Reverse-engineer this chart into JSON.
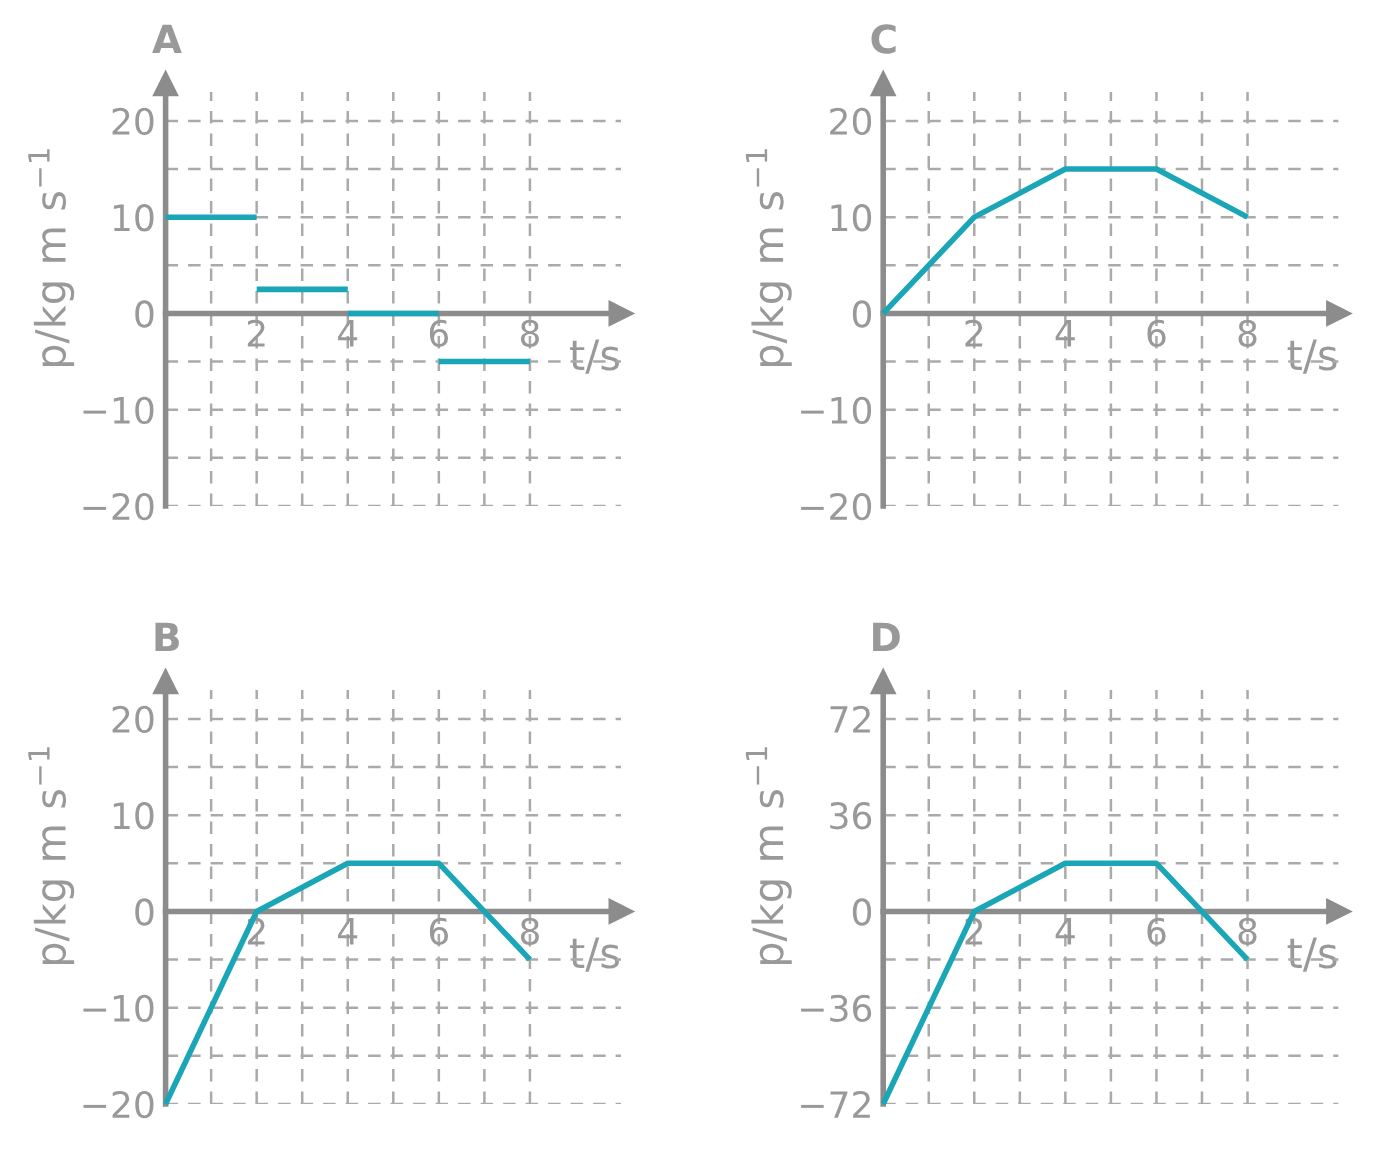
{
  "chart_data": [
    {
      "type": "line",
      "title": "A",
      "xlabel": "t/s",
      "ylabel": "p/kg m s$^{−1}$",
      "grid": true,
      "line_style": "solid",
      "xlim": [
        0,
        10
      ],
      "ylim": [
        -20,
        23
      ],
      "xticks": [
        {
          "value": 1,
          "label": null
        },
        2,
        {
          "value": 3,
          "label": null
        },
        4,
        {
          "value": 5,
          "label": null
        },
        6,
        {
          "value": 7,
          "label": null
        },
        8
      ],
      "yticks": [
        -20,
        {
          "value": -15,
          "label": null
        },
        -10,
        {
          "value": -5,
          "label": null
        },
        0,
        {
          "value": 5,
          "label": null
        },
        10,
        {
          "value": 15,
          "label": null
        },
        20
      ],
      "series": [
        {
          "color": "#1aa6b7",
          "x": [
            0,
            2
          ],
          "values": [
            10,
            10
          ]
        },
        {
          "color": "#1aa6b7",
          "x": [
            2,
            4
          ],
          "values": [
            2.5,
            2.5
          ]
        },
        {
          "color": "#1aa6b7",
          "x": [
            4,
            6
          ],
          "values": [
            0,
            0
          ]
        },
        {
          "color": "#1aa6b7",
          "x": [
            6,
            8
          ],
          "values": [
            -5,
            -5
          ]
        }
      ]
    },
    {
      "type": "line",
      "title": "C",
      "xlabel": "t/s",
      "ylabel": "p/kg m s$^{−1}$",
      "grid": true,
      "line_style": "solid",
      "xlim": [
        0,
        10
      ],
      "ylim": [
        -20,
        23
      ],
      "xticks": [
        {
          "value": 1,
          "label": null
        },
        2,
        {
          "value": 3,
          "label": null
        },
        4,
        {
          "value": 5,
          "label": null
        },
        6,
        {
          "value": 7,
          "label": null
        },
        8
      ],
      "yticks": [
        -20,
        {
          "value": -15,
          "label": null
        },
        -10,
        {
          "value": -5,
          "label": null
        },
        0,
        {
          "value": 5,
          "label": null
        },
        10,
        {
          "value": 15,
          "label": null
        },
        20
      ],
      "series": [
        {
          "color": "#1aa6b7",
          "x": [
            0,
            2,
            4,
            6,
            8
          ],
          "values": [
            0,
            10,
            15,
            15,
            10
          ]
        }
      ]
    },
    {
      "type": "line",
      "title": "B",
      "xlabel": "t/s",
      "ylabel": "p/kg m s$^{−1}$",
      "grid": true,
      "line_style": "solid",
      "xlim": [
        0,
        10
      ],
      "ylim": [
        -20,
        23
      ],
      "xticks": [
        {
          "value": 1,
          "label": null
        },
        2,
        {
          "value": 3,
          "label": null
        },
        4,
        {
          "value": 5,
          "label": null
        },
        6,
        {
          "value": 7,
          "label": null
        },
        8
      ],
      "yticks": [
        -20,
        {
          "value": -15,
          "label": null
        },
        -10,
        {
          "value": -5,
          "label": null
        },
        0,
        {
          "value": 5,
          "label": null
        },
        10,
        {
          "value": 15,
          "label": null
        },
        20
      ],
      "series": [
        {
          "color": "#1aa6b7",
          "x": [
            0,
            2,
            4,
            6,
            8
          ],
          "values": [
            -20,
            0,
            5,
            5,
            -5
          ]
        }
      ]
    },
    {
      "type": "line",
      "title": "D",
      "xlabel": "t/s",
      "ylabel": "p/kg m s$^{−1}$",
      "grid": true,
      "line_style": "solid",
      "xlim": [
        0,
        10
      ],
      "ylim": [
        -72,
        82.8
      ],
      "xticks": [
        {
          "value": 1,
          "label": null
        },
        2,
        {
          "value": 3,
          "label": null
        },
        4,
        {
          "value": 5,
          "label": null
        },
        6,
        {
          "value": 7,
          "label": null
        },
        8
      ],
      "yticks": [
        -72,
        {
          "value": -54,
          "label": null
        },
        -36,
        {
          "value": -18,
          "label": null
        },
        0,
        {
          "value": 18,
          "label": null
        },
        36,
        {
          "value": 54,
          "label": null
        },
        72
      ],
      "series": [
        {
          "color": "#1aa6b7",
          "x": [
            0,
            2,
            4,
            6,
            8
          ],
          "values": [
            -72,
            0,
            18,
            18,
            -18
          ]
        }
      ]
    }
  ]
}
